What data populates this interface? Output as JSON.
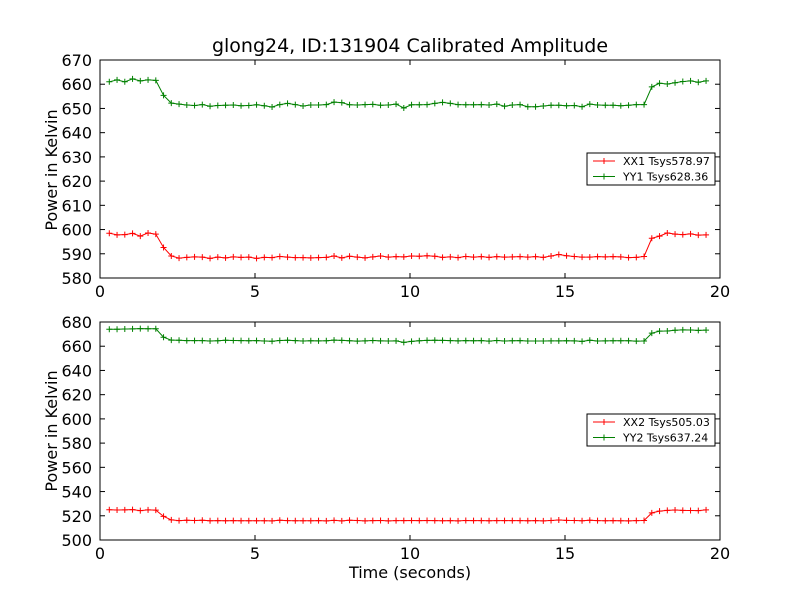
{
  "chart_data": [
    {
      "type": "line",
      "title": "glong24, ID:131904 Calibrated Amplitude",
      "xlabel": "",
      "ylabel": "Power in Kelvin",
      "xlim": [
        0,
        20
      ],
      "ylim": [
        580,
        670
      ],
      "xticks": [
        0,
        5,
        10,
        15,
        20
      ],
      "yticks": [
        580,
        590,
        600,
        610,
        620,
        630,
        640,
        650,
        660,
        670
      ],
      "legend_position": "center-right",
      "x": [
        0.3,
        0.55,
        0.8,
        1.05,
        1.3,
        1.55,
        1.8,
        2.05,
        2.3,
        2.55,
        2.8,
        3.05,
        3.3,
        3.55,
        3.8,
        4.05,
        4.3,
        4.55,
        4.8,
        5.05,
        5.3,
        5.55,
        5.8,
        6.05,
        6.3,
        6.55,
        6.8,
        7.05,
        7.3,
        7.55,
        7.8,
        8.05,
        8.3,
        8.55,
        8.8,
        9.05,
        9.3,
        9.55,
        9.8,
        10.05,
        10.3,
        10.55,
        10.8,
        11.05,
        11.3,
        11.55,
        11.8,
        12.05,
        12.3,
        12.55,
        12.8,
        13.05,
        13.3,
        13.55,
        13.8,
        14.05,
        14.3,
        14.55,
        14.8,
        15.05,
        15.3,
        15.55,
        15.8,
        16.05,
        16.3,
        16.55,
        16.8,
        17.05,
        17.3,
        17.55,
        17.8,
        18.05,
        18.3,
        18.55,
        18.8,
        19.05,
        19.3,
        19.55
      ],
      "series": [
        {
          "name": "XX1 Tsys578.97",
          "color": "#ff0000",
          "values": [
            598.5,
            597.8,
            597.9,
            598.4,
            597.3,
            598.6,
            598.1,
            592.6,
            589.1,
            588.2,
            588.5,
            588.7,
            588.6,
            588.1,
            588.6,
            588.3,
            588.7,
            588.5,
            588.6,
            588.1,
            588.5,
            588.4,
            588.9,
            588.6,
            588.4,
            588.4,
            588.3,
            588.4,
            588.5,
            589.1,
            588.3,
            589.0,
            588.6,
            588.3,
            588.7,
            589.1,
            588.6,
            588.8,
            588.7,
            589.1,
            589.0,
            589.2,
            589.0,
            588.5,
            588.7,
            588.4,
            588.9,
            588.6,
            588.8,
            588.5,
            588.8,
            588.6,
            588.7,
            588.8,
            588.6,
            588.8,
            588.5,
            589.1,
            589.7,
            589.2,
            588.9,
            588.6,
            588.6,
            588.8,
            588.7,
            588.8,
            588.7,
            588.4,
            588.5,
            588.9,
            596.4,
            597.3,
            598.6,
            598.1,
            597.9,
            598.2,
            597.7,
            597.8
          ]
        },
        {
          "name": "YY1 Tsys628.36",
          "color": "#008000",
          "values": [
            661.0,
            661.8,
            661.0,
            662.2,
            661.4,
            661.8,
            661.6,
            655.4,
            652.2,
            651.8,
            651.4,
            651.2,
            651.6,
            650.9,
            651.2,
            651.3,
            651.4,
            651.1,
            651.2,
            651.5,
            651.1,
            650.6,
            651.6,
            652.1,
            651.6,
            651.0,
            651.4,
            651.4,
            651.6,
            652.6,
            652.4,
            651.5,
            651.4,
            651.6,
            651.7,
            651.3,
            651.4,
            651.8,
            650.2,
            651.5,
            651.5,
            651.6,
            652.1,
            652.5,
            652.1,
            651.6,
            651.5,
            651.5,
            651.6,
            651.4,
            651.8,
            650.9,
            651.4,
            651.6,
            650.7,
            650.7,
            651.0,
            651.3,
            651.3,
            651.1,
            651.2,
            650.7,
            651.8,
            651.4,
            651.3,
            651.3,
            651.1,
            651.3,
            651.6,
            651.6,
            658.9,
            660.4,
            660.1,
            660.6,
            661.1,
            661.4,
            660.8,
            661.4
          ]
        }
      ]
    },
    {
      "type": "line",
      "title": "",
      "xlabel": "Time (seconds)",
      "ylabel": "Power in Kelvin",
      "xlim": [
        0,
        20
      ],
      "ylim": [
        500,
        680
      ],
      "xticks": [
        0,
        5,
        10,
        15,
        20
      ],
      "yticks": [
        500,
        520,
        540,
        560,
        580,
        600,
        620,
        640,
        660,
        680
      ],
      "legend_position": "center-right",
      "x": [
        0.3,
        0.55,
        0.8,
        1.05,
        1.3,
        1.55,
        1.8,
        2.05,
        2.3,
        2.55,
        2.8,
        3.05,
        3.3,
        3.55,
        3.8,
        4.05,
        4.3,
        4.55,
        4.8,
        5.05,
        5.3,
        5.55,
        5.8,
        6.05,
        6.3,
        6.55,
        6.8,
        7.05,
        7.3,
        7.55,
        7.8,
        8.05,
        8.3,
        8.55,
        8.8,
        9.05,
        9.3,
        9.55,
        9.8,
        10.05,
        10.3,
        10.55,
        10.8,
        11.05,
        11.3,
        11.55,
        11.8,
        12.05,
        12.3,
        12.55,
        12.8,
        13.05,
        13.3,
        13.55,
        13.8,
        14.05,
        14.3,
        14.55,
        14.8,
        15.05,
        15.3,
        15.55,
        15.8,
        16.05,
        16.3,
        16.55,
        16.8,
        17.05,
        17.3,
        17.55,
        17.8,
        18.05,
        18.3,
        18.55,
        18.8,
        19.05,
        19.3,
        19.55
      ],
      "series": [
        {
          "name": "XX2 Tsys505.03",
          "color": "#ff0000",
          "values": [
            525.0,
            524.8,
            524.9,
            525.1,
            524.3,
            524.9,
            524.7,
            519.5,
            516.6,
            516.0,
            516.3,
            516.1,
            516.3,
            515.9,
            516.0,
            515.9,
            516.0,
            515.9,
            515.9,
            515.9,
            515.9,
            515.8,
            516.3,
            516.0,
            515.9,
            515.9,
            515.9,
            516.0,
            515.8,
            516.2,
            515.8,
            516.3,
            516.1,
            515.8,
            516.0,
            516.1,
            515.8,
            516.0,
            516.0,
            516.1,
            516.0,
            516.1,
            516.0,
            515.9,
            516.0,
            515.8,
            516.1,
            516.0,
            516.0,
            515.9,
            516.0,
            516.0,
            516.0,
            516.0,
            515.9,
            516.0,
            515.8,
            516.1,
            516.5,
            516.2,
            516.1,
            515.9,
            516.3,
            516.0,
            515.9,
            516.0,
            515.9,
            515.8,
            516.0,
            516.1,
            522.4,
            523.8,
            524.5,
            524.8,
            524.5,
            524.4,
            524.3,
            524.9
          ]
        },
        {
          "name": "YY2 Tsys637.24",
          "color": "#008000",
          "values": [
            674.0,
            674.0,
            674.2,
            674.3,
            674.5,
            674.4,
            674.4,
            667.4,
            665.0,
            664.9,
            664.6,
            664.6,
            664.6,
            664.3,
            664.5,
            664.9,
            664.7,
            664.6,
            664.5,
            664.6,
            664.3,
            664.1,
            664.7,
            664.9,
            664.6,
            664.3,
            664.5,
            664.4,
            664.5,
            665.0,
            664.8,
            664.5,
            664.2,
            664.4,
            664.7,
            664.4,
            664.3,
            664.4,
            663.2,
            664.0,
            664.5,
            664.8,
            664.9,
            664.8,
            664.6,
            664.4,
            664.6,
            664.5,
            664.6,
            664.2,
            664.7,
            664.3,
            664.5,
            664.6,
            664.3,
            664.3,
            664.3,
            664.4,
            664.4,
            664.5,
            664.4,
            664.0,
            664.9,
            664.3,
            664.4,
            664.5,
            664.5,
            664.5,
            664.2,
            664.3,
            670.8,
            672.5,
            672.6,
            673.2,
            673.5,
            673.4,
            673.1,
            673.3
          ]
        }
      ]
    }
  ]
}
